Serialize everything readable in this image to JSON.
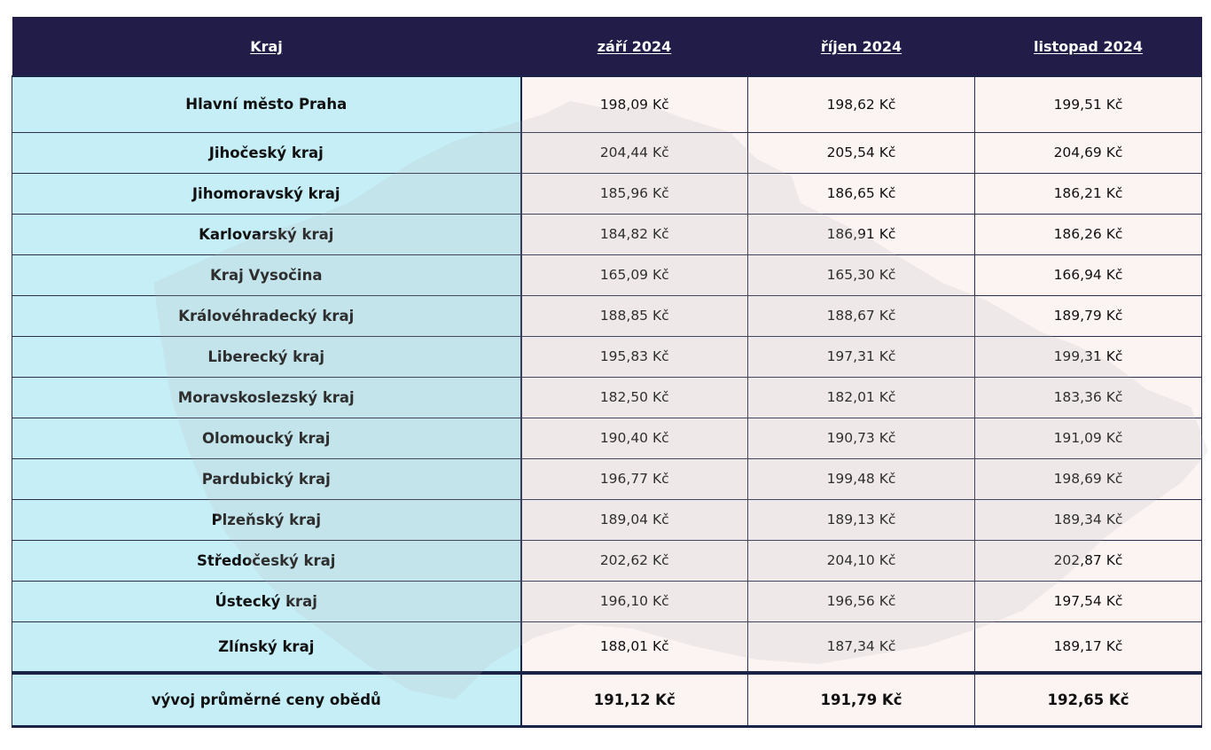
{
  "table": {
    "headers": [
      "Kraj",
      "září 2024",
      "říjen 2024",
      "listopad 2024"
    ],
    "rows": [
      {
        "region": "Hlavní město Praha",
        "values": [
          "198,09 Kč",
          "198,62 Kč",
          "199,51 Kč"
        ]
      },
      {
        "region": "Jihočeský kraj",
        "values": [
          "204,44 Kč",
          "205,54 Kč",
          "204,69 Kč"
        ]
      },
      {
        "region": "Jihomoravský kraj",
        "values": [
          "185,96 Kč",
          "186,65 Kč",
          "186,21 Kč"
        ]
      },
      {
        "region": "Karlovarský kraj",
        "values": [
          "184,82 Kč",
          "186,91 Kč",
          "186,26 Kč"
        ]
      },
      {
        "region": "Kraj Vysočina",
        "values": [
          "165,09 Kč",
          "165,30 Kč",
          "166,94 Kč"
        ]
      },
      {
        "region": "Královéhradecký kraj",
        "values": [
          "188,85 Kč",
          "188,67 Kč",
          "189,79 Kč"
        ]
      },
      {
        "region": "Liberecký kraj",
        "values": [
          "195,83 Kč",
          "197,31 Kč",
          "199,31 Kč"
        ]
      },
      {
        "region": "Moravskoslezský kraj",
        "values": [
          "182,50 Kč",
          "182,01 Kč",
          "183,36 Kč"
        ]
      },
      {
        "region": "Olomoucký kraj",
        "values": [
          "190,40 Kč",
          "190,73 Kč",
          "191,09 Kč"
        ]
      },
      {
        "region": "Pardubický kraj",
        "values": [
          "196,77 Kč",
          "199,48 Kč",
          "198,69 Kč"
        ]
      },
      {
        "region": "Plzeňský kraj",
        "values": [
          "189,04 Kč",
          "189,13 Kč",
          "189,34 Kč"
        ]
      },
      {
        "region": "Středočeský kraj",
        "values": [
          "202,62 Kč",
          "204,10 Kč",
          "202,87 Kč"
        ]
      },
      {
        "region": "Ústecký kraj",
        "values": [
          "196,10 Kč",
          "196,56 Kč",
          "197,54 Kč"
        ]
      },
      {
        "region": "Zlínský kraj",
        "values": [
          "188,01 Kč",
          "187,34 Kč",
          "189,17 Kč"
        ]
      }
    ],
    "summary": {
      "label": "vývoj průměrné ceny obědů",
      "values": [
        "191,12 Kč",
        "191,79 Kč",
        "192,65 Kč"
      ]
    }
  },
  "colors": {
    "header_bg": "#221d48",
    "header_text": "#ffffff",
    "region_bg": "#c6eef7",
    "value_bg": "#fcf3f3",
    "border": "#1c2348",
    "watermark": "#b9b9b9"
  },
  "icons": {
    "watermark": "czech-map-icon"
  }
}
